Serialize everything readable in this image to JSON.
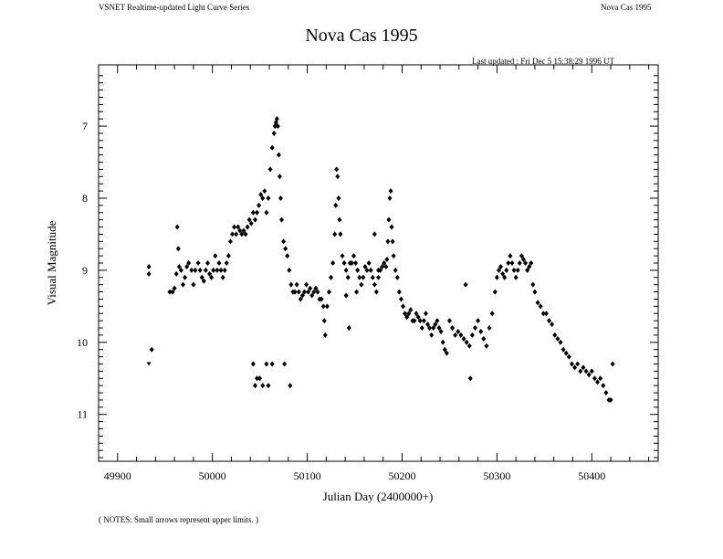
{
  "header": {
    "series_title": "VSNET Realtime-updated Light Curve Series",
    "object_name": "Nova Cas 1995"
  },
  "updated": {
    "label": "Last updated :",
    "value": "Fri Dec 5 15:38:29 1996 UT"
  },
  "notes": "( NOTES: Small arrows represent upper limits. )",
  "colors": {
    "marks": "#000000",
    "background": "#ffffff"
  },
  "chart_data": {
    "type": "scatter",
    "title": "Nova Cas 1995",
    "xlabel": "Julian Day (2400000+)",
    "ylabel": "Visual Magnitude",
    "xlim": [
      49880,
      50470
    ],
    "ylim": [
      11.65,
      6.15
    ],
    "y_inverted": true,
    "grid": false,
    "x_ticks": [
      49900,
      50000,
      50100,
      50200,
      50300,
      50400
    ],
    "x_tick_labels": [
      "49900",
      "50000",
      "50100",
      "50200",
      "50300",
      "50400"
    ],
    "y_ticks": [
      7,
      8,
      9,
      10,
      11
    ],
    "y_tick_labels": [
      "7",
      "8",
      "9",
      "10",
      "11"
    ],
    "series": [
      {
        "marker": "diamond",
        "x": [
          49933,
          49933,
          49936,
          49955,
          49958,
          49960,
          49962,
          49964,
          49965,
          49967,
          49969,
          49971,
          49973,
          49975,
          49978,
          49980,
          49982,
          49985,
          49987,
          49989,
          49991,
          49993,
          49995,
          49997,
          49999,
          50001,
          50003,
          50005,
          50007,
          50009,
          50011,
          50013,
          50015,
          50017,
          50019,
          50021,
          50023,
          50025,
          50027,
          50029,
          50031,
          50033,
          50035,
          50037,
          50039,
          50041,
          50043,
          50045,
          50047,
          50049,
          50051,
          50053,
          50055,
          50057,
          50059,
          50061,
          50063,
          50065,
          50066,
          50067,
          50068,
          50069,
          50070,
          50071,
          50072,
          50073,
          50075,
          50077,
          50079,
          50081,
          50083,
          50085,
          50087,
          50089,
          50091,
          50093,
          50095,
          50097,
          50099,
          50101,
          50103,
          50105,
          50107,
          50109,
          50111,
          50113,
          50115,
          50117,
          50118,
          50119,
          50121,
          50123,
          50125,
          50127,
          50129,
          50130,
          50131,
          50132,
          50133,
          50134,
          50135,
          50137,
          50139,
          50141,
          50143,
          50145,
          50147,
          50149,
          50151,
          50153,
          50155,
          50157,
          50159,
          50161,
          50163,
          50165,
          50167,
          50169,
          50171,
          50173,
          50175,
          50177,
          50179,
          50181,
          50183,
          50184,
          50185,
          50186,
          50187,
          50188,
          50189,
          50190,
          50191,
          50193,
          50195,
          50197,
          50199,
          50201,
          50203,
          50205,
          50207,
          50209,
          50211,
          50213,
          50215,
          50217,
          50219,
          50221,
          50223,
          50225,
          50227,
          50229,
          50231,
          50233,
          50235,
          50237,
          50239,
          50241,
          50243,
          50245,
          50247,
          50250,
          50253,
          50256,
          50259,
          50262,
          50265,
          50268,
          50271,
          50274,
          50277,
          50280,
          50283,
          50286,
          50289,
          50292,
          50295,
          50298,
          50300,
          50302,
          50304,
          50306,
          50308,
          50310,
          50312,
          50314,
          50316,
          50318,
          50320,
          50322,
          50324,
          50326,
          50328,
          50330,
          50332,
          50334,
          50336,
          50338,
          50340,
          50343,
          50346,
          50349,
          50352,
          50355,
          50358,
          50361,
          50364,
          50367,
          50370,
          50373,
          50376,
          50379,
          50382,
          50385,
          50388,
          50391,
          50394,
          50397,
          50400,
          50403,
          50406,
          50409,
          50412,
          50415,
          50418,
          50420,
          50422,
          50045,
          50047,
          50050,
          50053,
          50076,
          50082,
          50043,
          50057,
          50059,
          50063,
          50141,
          50144,
          50152,
          50171,
          50175,
          49963,
          50267,
          50272
        ],
        "y": [
          8.95,
          9.05,
          10.1,
          9.3,
          9.3,
          9.25,
          9.05,
          8.7,
          8.95,
          9.0,
          9.2,
          9.1,
          8.95,
          8.9,
          9.0,
          9.2,
          9.0,
          8.9,
          9.0,
          9.1,
          9.15,
          9.0,
          8.9,
          9.05,
          9.1,
          9.0,
          8.8,
          9.0,
          8.9,
          9.0,
          9.1,
          9.0,
          8.9,
          8.8,
          8.6,
          8.5,
          8.4,
          8.5,
          8.4,
          8.45,
          8.5,
          8.45,
          8.5,
          8.4,
          8.3,
          8.35,
          8.2,
          8.3,
          8.2,
          8.1,
          7.95,
          8.0,
          7.9,
          8.2,
          8.0,
          7.6,
          7.3,
          7.1,
          7.0,
          6.95,
          6.9,
          7.0,
          7.4,
          7.7,
          8.0,
          8.3,
          8.6,
          8.7,
          8.8,
          9.0,
          9.2,
          9.3,
          9.3,
          9.2,
          9.3,
          9.4,
          9.35,
          9.3,
          9.2,
          9.3,
          9.25,
          9.35,
          9.3,
          9.25,
          9.3,
          9.4,
          9.4,
          9.5,
          9.7,
          9.9,
          9.5,
          9.3,
          9.1,
          8.9,
          8.5,
          8.1,
          7.6,
          7.7,
          8.0,
          8.3,
          8.5,
          8.8,
          8.9,
          9.0,
          9.1,
          8.9,
          8.9,
          8.8,
          8.9,
          9.0,
          9.1,
          9.2,
          9.1,
          8.95,
          9.0,
          8.9,
          9.0,
          9.1,
          9.2,
          9.3,
          9.1,
          9.0,
          8.95,
          8.9,
          8.95,
          8.85,
          8.6,
          8.3,
          8.0,
          7.9,
          8.4,
          8.6,
          8.8,
          9.0,
          9.1,
          9.3,
          9.4,
          9.5,
          9.6,
          9.65,
          9.6,
          9.55,
          9.7,
          9.7,
          9.6,
          9.65,
          9.7,
          9.8,
          9.7,
          9.6,
          9.75,
          9.8,
          9.9,
          9.8,
          9.75,
          9.7,
          9.8,
          9.85,
          10.0,
          10.1,
          10.15,
          9.7,
          9.8,
          9.9,
          9.85,
          9.9,
          9.95,
          10.0,
          10.05,
          9.9,
          9.8,
          9.7,
          9.85,
          9.95,
          10.05,
          9.8,
          9.6,
          9.3,
          9.1,
          9.0,
          8.95,
          9.05,
          9.1,
          9.0,
          8.9,
          8.8,
          8.9,
          9.0,
          9.1,
          9.0,
          8.9,
          8.8,
          8.85,
          8.9,
          9.0,
          8.95,
          8.9,
          9.2,
          9.3,
          9.45,
          9.5,
          9.6,
          9.6,
          9.7,
          9.75,
          9.9,
          9.95,
          10.0,
          10.1,
          10.15,
          10.2,
          10.3,
          10.35,
          10.3,
          10.4,
          10.35,
          10.4,
          10.45,
          10.4,
          10.5,
          10.55,
          10.5,
          10.6,
          10.7,
          10.8,
          10.8,
          10.3,
          10.6,
          10.5,
          10.5,
          10.6,
          10.3,
          10.6,
          10.3,
          10.3,
          10.6,
          10.3,
          9.35,
          9.8,
          9.3,
          8.5,
          9.0,
          8.4,
          9.2,
          10.5
        ]
      },
      {
        "name": "upper limits",
        "marker": "arrow",
        "x": [
          49933
        ],
        "y": [
          10.3
        ]
      }
    ]
  }
}
